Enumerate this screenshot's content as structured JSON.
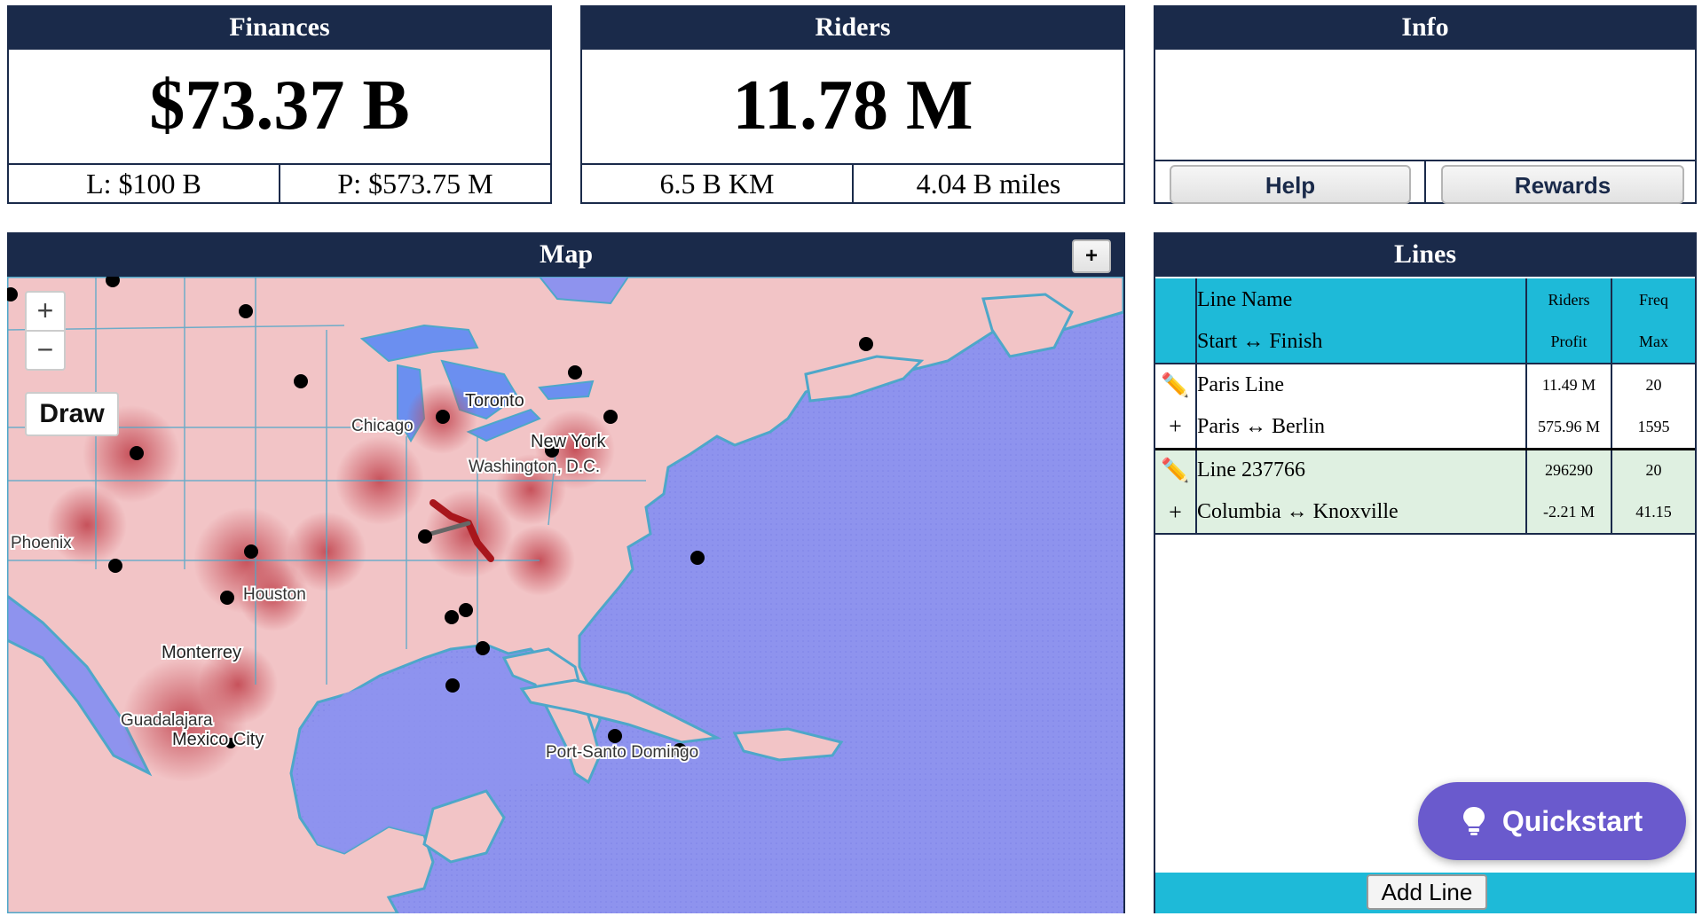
{
  "finances": {
    "title": "Finances",
    "value": "$73.37 B",
    "loan": "L: $100 B",
    "profit": "P: $573.75 M"
  },
  "riders": {
    "title": "Riders",
    "value": "11.78 M",
    "km": "6.5 B KM",
    "miles": "4.04 B miles"
  },
  "info": {
    "title": "Info",
    "help": "Help",
    "rewards": "Rewards"
  },
  "map": {
    "title": "Map",
    "expand": "+",
    "zoom_in": "+",
    "zoom_out": "−",
    "draw": "Draw",
    "labels": {
      "toronto": "Toronto",
      "chicago": "Chicago",
      "new_york": "New York",
      "washington": "Washington, D.C.",
      "phoenix": "Phoenix",
      "houston": "Houston",
      "monterrey": "Monterrey",
      "guadalajara": "Guadalajara",
      "mexico_city": "Mexico City",
      "port_santo": "Port-Santo Domingo"
    },
    "colors": {
      "water": "#8e93ee",
      "land": "#f3c7c9",
      "route": "#a8161c",
      "station": "#000000"
    }
  },
  "lines": {
    "title": "Lines",
    "headers": {
      "name": "Line Name",
      "riders": "Riders",
      "freq": "Freq",
      "ends": "Start ↔ Finish",
      "profit": "Profit",
      "max": "Max"
    },
    "rows": [
      {
        "edit_icon": "✏️",
        "expand_icon": "+",
        "name": "Paris Line",
        "riders": "11.49 M",
        "freq": "20",
        "ends": "Paris ↔ Berlin",
        "profit": "575.96 M",
        "max": "1595"
      },
      {
        "edit_icon": "✏️",
        "expand_icon": "+",
        "name": "Line 237766",
        "riders": "296290",
        "freq": "20",
        "ends": "Columbia ↔ Knoxville",
        "profit": "-2.21 M",
        "max": "41.15"
      }
    ],
    "add_line": "Add Line"
  },
  "quickstart": {
    "label": "Quickstart",
    "icon": "lightbulb-icon"
  }
}
